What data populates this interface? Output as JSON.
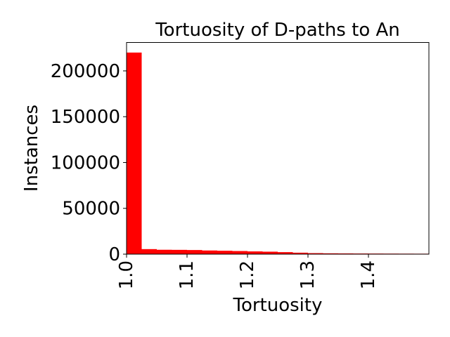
{
  "chart_data": {
    "type": "bar",
    "title": "Tortuosity of D-paths to An",
    "xlabel": "Tortuosity",
    "ylabel": "Instances",
    "xlim": [
      1.0,
      1.5
    ],
    "ylim": [
      0,
      231000
    ],
    "xticks": [
      "1.0",
      "1.1",
      "1.2",
      "1.3",
      "1.4"
    ],
    "yticks": [
      "0",
      "50000",
      "100000",
      "150000",
      "200000"
    ],
    "bin_width": 0.025,
    "bins": [
      {
        "x0": 1.0,
        "value": 220000
      },
      {
        "x0": 1.025,
        "value": 5500
      },
      {
        "x0": 1.05,
        "value": 4800
      },
      {
        "x0": 1.075,
        "value": 4700
      },
      {
        "x0": 1.1,
        "value": 4500
      },
      {
        "x0": 1.125,
        "value": 4000
      },
      {
        "x0": 1.15,
        "value": 3700
      },
      {
        "x0": 1.175,
        "value": 3400
      },
      {
        "x0": 1.2,
        "value": 3000
      },
      {
        "x0": 1.225,
        "value": 2700
      },
      {
        "x0": 1.25,
        "value": 2200
      },
      {
        "x0": 1.275,
        "value": 1600
      },
      {
        "x0": 1.3,
        "value": 1100
      },
      {
        "x0": 1.325,
        "value": 900
      },
      {
        "x0": 1.35,
        "value": 800
      },
      {
        "x0": 1.375,
        "value": 700
      },
      {
        "x0": 1.4,
        "value": 650
      },
      {
        "x0": 1.425,
        "value": 600
      },
      {
        "x0": 1.45,
        "value": 550
      },
      {
        "x0": 1.475,
        "value": 500
      }
    ],
    "bar_color": "#ff0000",
    "grid": false,
    "legend": "none"
  }
}
